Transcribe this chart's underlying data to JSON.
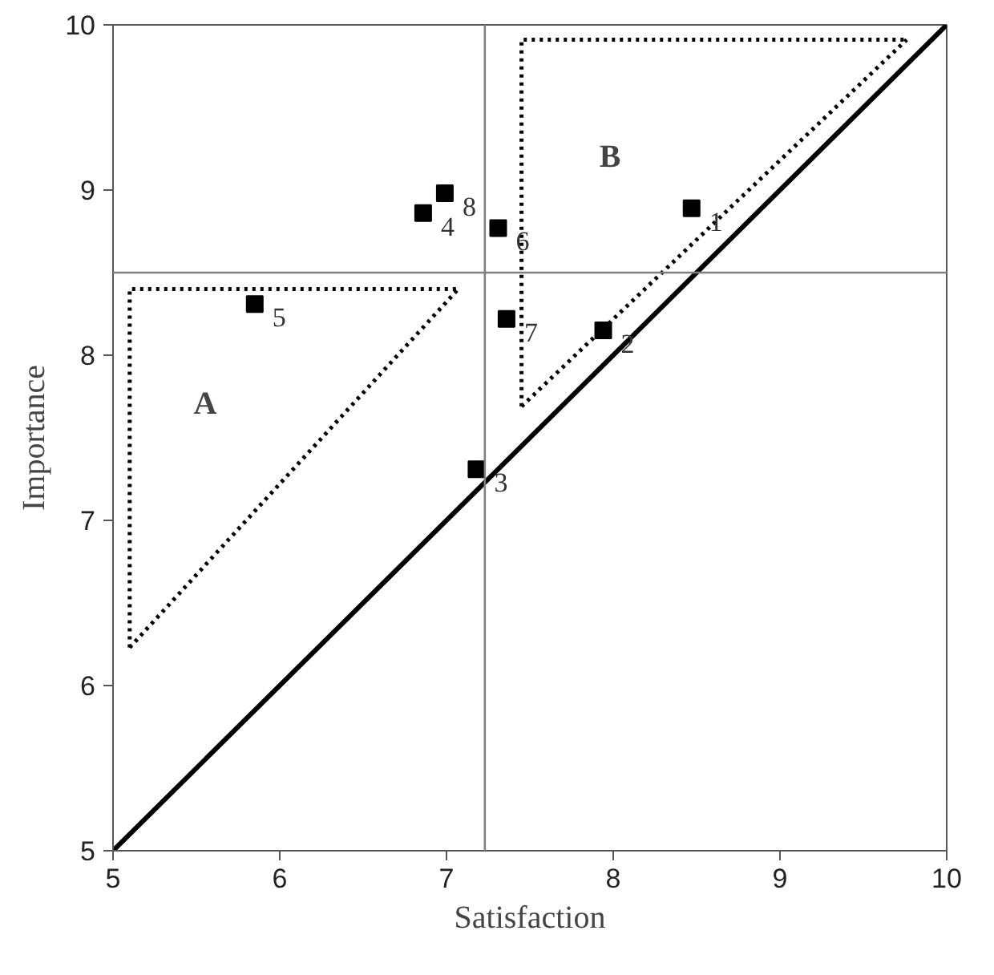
{
  "chart_data": {
    "type": "scatter",
    "xlabel": "Satisfaction",
    "ylabel": "Importance",
    "xlim": [
      5,
      10
    ],
    "ylim": [
      5,
      10
    ],
    "xticks": [
      5,
      6,
      7,
      8,
      9,
      10
    ],
    "yticks": [
      5,
      6,
      7,
      8,
      9,
      10
    ],
    "grid": false,
    "marker": "square",
    "series": [
      {
        "color": "#000000",
        "x": [
          8.47,
          7.94,
          7.18,
          6.86,
          5.85,
          7.31,
          7.36,
          6.99
        ],
        "values": [
          8.89,
          8.15,
          7.31,
          8.86,
          8.31,
          8.77,
          8.22,
          8.98
        ]
      },
      {
        "type": "line",
        "color": "#000000",
        "line_style": "solid",
        "marker": "none",
        "x": [
          5,
          10
        ],
        "values": [
          5,
          10
        ]
      },
      {
        "type": "line",
        "color": "#000000",
        "line_style": "dotted",
        "marker": "none",
        "x": [
          5.1,
          5.1,
          7.07
        ],
        "values": [
          6.23,
          8.4,
          8.4
        ]
      },
      {
        "type": "line",
        "color": "#000000",
        "line_style": "dotted",
        "marker": "none",
        "x": [
          5.1,
          7.07
        ],
        "values": [
          6.23,
          8.4
        ]
      },
      {
        "type": "line",
        "color": "#000000",
        "line_style": "dotted",
        "marker": "none",
        "x": [
          7.45,
          7.45,
          9.76
        ],
        "values": [
          7.69,
          9.91,
          9.91
        ]
      },
      {
        "type": "line",
        "color": "#000000",
        "line_style": "dotted",
        "marker": "none",
        "x": [
          7.45,
          9.76
        ],
        "values": [
          7.69,
          9.91
        ]
      }
    ],
    "ref_lines": [
      {
        "axis": "x",
        "value": 7.23,
        "color": "#808080"
      },
      {
        "axis": "y",
        "value": 8.5,
        "color": "#808080"
      }
    ],
    "annotations": [
      "A",
      "B",
      {
        "text": "1",
        "x": 8.47,
        "y": 8.89
      },
      {
        "text": "2",
        "x": 7.94,
        "y": 8.15
      },
      {
        "text": "3",
        "x": 7.18,
        "y": 7.31
      },
      {
        "text": "4",
        "x": 6.86,
        "y": 8.86
      },
      {
        "text": "5",
        "x": 5.85,
        "y": 8.31
      },
      {
        "text": "6",
        "x": 7.31,
        "y": 8.77
      },
      {
        "text": "7",
        "x": 7.36,
        "y": 8.22
      },
      {
        "text": "8",
        "x": 6.99,
        "y": 8.98
      }
    ]
  }
}
